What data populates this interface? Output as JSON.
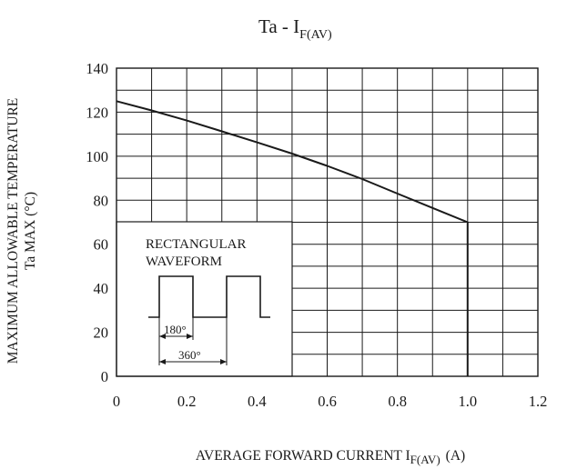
{
  "chart_data": {
    "type": "line",
    "title": {
      "main": "Ta  -  I",
      "subscript": "F(AV)"
    },
    "ylabel": {
      "line1": "MAXIMUM ALLOWABLE TEMPERATURE",
      "line2": "Ta MAX  (°C)"
    },
    "xlabel": {
      "main": "AVERAGE FORWARD CURRENT I",
      "subscript": "F(AV)",
      "unit": "(A)"
    },
    "xlim": [
      0,
      1.2
    ],
    "ylim": [
      0,
      140
    ],
    "x_ticks": [
      "0",
      "0.2",
      "0.4",
      "0.6",
      "0.8",
      "1.0",
      "1.2"
    ],
    "x_tick_values": [
      0,
      0.2,
      0.4,
      0.6,
      0.8,
      1.0,
      1.2
    ],
    "y_ticks": [
      "0",
      "20",
      "40",
      "60",
      "80",
      "100",
      "120",
      "140"
    ],
    "y_tick_values": [
      0,
      20,
      40,
      60,
      80,
      100,
      120,
      140
    ],
    "grid": true,
    "grid_x_step": 0.1,
    "grid_y_step": 10,
    "series": [
      {
        "x": [
          0,
          0.1,
          0.2,
          0.3,
          0.4,
          0.5,
          0.6,
          0.7,
          0.8,
          0.9,
          1.0,
          1.0
        ],
        "y": [
          125,
          120.8,
          116.2,
          111.3,
          106.3,
          101.2,
          95.6,
          89.6,
          83,
          76.5,
          70,
          0
        ]
      }
    ],
    "inset": {
      "label_line1": "RECTANGULAR",
      "label_line2": "WAVEFORM",
      "angle_small": "180°",
      "angle_large": "360°"
    }
  }
}
